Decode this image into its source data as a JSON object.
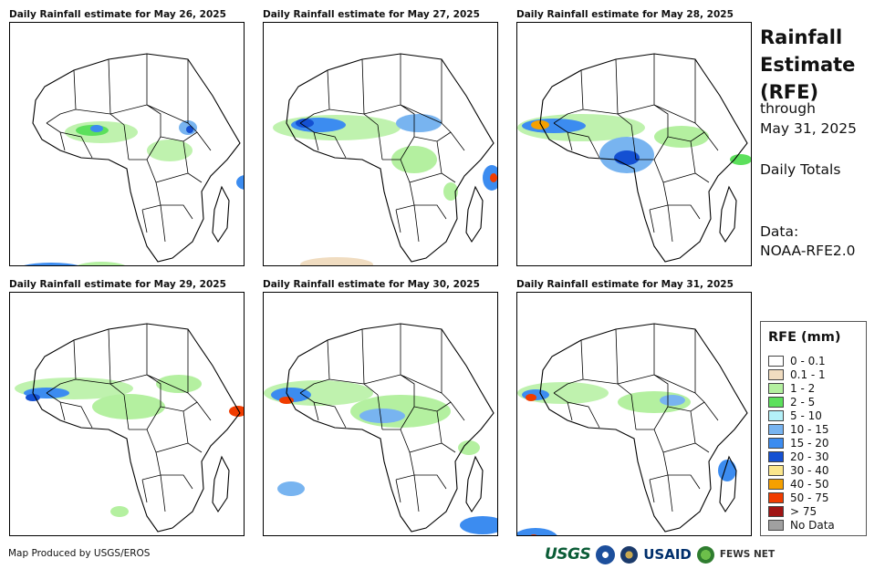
{
  "panels": [
    {
      "title": "Daily Rainfall estimate for May 26, 2025"
    },
    {
      "title": "Daily Rainfall estimate for May 27, 2025"
    },
    {
      "title": "Daily Rainfall estimate for May 28, 2025"
    },
    {
      "title": "Daily Rainfall estimate for May 29, 2025"
    },
    {
      "title": "Daily Rainfall estimate for May 30, 2025"
    },
    {
      "title": "Daily Rainfall estimate for May 31, 2025"
    }
  ],
  "sidebar": {
    "title": "Rainfall Estimate (RFE)",
    "through_label": "through",
    "end_date": "May 31, 2025",
    "totals_label": "Daily Totals",
    "data_label": "Data:",
    "data_source": "NOAA-RFE2.0"
  },
  "legend": {
    "title": "RFE (mm)",
    "items": [
      {
        "label": "0 - 0.1",
        "color": "#ffffff"
      },
      {
        "label": "0.1 - 1",
        "color": "#f0dcc0"
      },
      {
        "label": "1 - 2",
        "color": "#b4f0a0"
      },
      {
        "label": "2 - 5",
        "color": "#5ce05c"
      },
      {
        "label": "5 - 10",
        "color": "#b4f0f8"
      },
      {
        "label": "10 - 15",
        "color": "#78b4f0"
      },
      {
        "label": "15 - 20",
        "color": "#3c8cf0"
      },
      {
        "label": "20 - 30",
        "color": "#1450d2"
      },
      {
        "label": "30 - 40",
        "color": "#fae68c"
      },
      {
        "label": "40 - 50",
        "color": "#f5a000"
      },
      {
        "label": "50 - 75",
        "color": "#f03c00"
      },
      {
        "label": "> 75",
        "color": "#a01414"
      },
      {
        "label": "No Data",
        "color": "#a0a0a0"
      }
    ]
  },
  "footer": {
    "credit": "Map Produced by USGS/EROS",
    "logos": [
      "USGS",
      "NOAA",
      "U.S. Department of State seal",
      "USAID",
      "FEWS NET"
    ]
  }
}
